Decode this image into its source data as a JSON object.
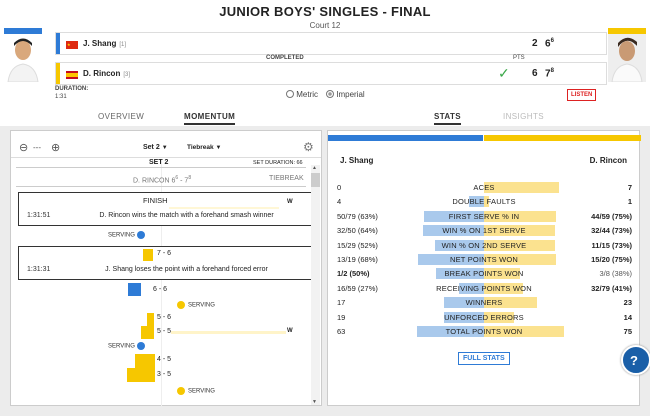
{
  "header": {
    "title": "JUNIOR BOYS' SINGLES - FINAL",
    "court": "Court 12"
  },
  "players": [
    {
      "name": "J. Shang",
      "seed": "[1]",
      "score_sets": "2",
      "score_set2": "6",
      "score_tb": "6",
      "color": "#2e7bd6",
      "flag": "china"
    },
    {
      "name": "D. Rincon",
      "seed": "[3]",
      "score_sets": "6",
      "score_set2": "7",
      "score_tb": "8",
      "color": "#f6c700",
      "flag": "spain"
    }
  ],
  "match": {
    "pts_label": "PTS",
    "status": "COMPLETED",
    "duration_label": "DURATION:",
    "duration": "1:31",
    "metric": "Metric",
    "imperial": "Imperial",
    "listen": "LISTEN"
  },
  "tabs": {
    "overview": "OVERVIEW",
    "momentum": "MOMENTUM",
    "stats": "STATS",
    "insights": "INSIGHTS"
  },
  "momentum": {
    "zoom_level": "---",
    "set_select": "Set 2",
    "tiebreak_select": "Tiebreak",
    "set_heading": "SET 2",
    "set_duration": "SET DURATION: 66",
    "set_score_name": "D. RINCON 6",
    "set_score_sup1": "6",
    "set_score_dash": " - 7",
    "set_score_sup2": "8",
    "tiebreak_label": "TIEBREAK",
    "finish_label": "FINISH",
    "w": "W",
    "msg1": {
      "time": "1:31:51",
      "text": "D. Rincon wins the match with a forehand smash winner"
    },
    "msg2": {
      "time": "1:31:31",
      "text": "J. Shang loses the point with a forehand forced error"
    },
    "serving": "SERVING",
    "scores": [
      "7 - 6",
      "6 - 6",
      "5 - 6",
      "5 - 5",
      "4 - 5",
      "3 - 5"
    ]
  },
  "stats": {
    "left_player": "J. Shang",
    "right_player": "D. Rincon",
    "rows": [
      {
        "left": "0",
        "label": "Aces",
        "right": "7",
        "lpct": 0,
        "rpct": 50,
        "bold": true
      },
      {
        "left": "4",
        "label": "Double Faults",
        "right": "1",
        "lpct": 10,
        "rpct": 3,
        "bold": true
      },
      {
        "left": "50/79 (63%)",
        "label": "First Serve % In",
        "right": "44/59 (75%)",
        "lpct": 40,
        "rpct": 48,
        "bold": true
      },
      {
        "left": "32/50 (64%)",
        "label": "Win % On 1st Serve",
        "right": "32/44 (73%)",
        "lpct": 41,
        "rpct": 47,
        "bold": true
      },
      {
        "left": "15/29 (52%)",
        "label": "Win % On 2nd Serve",
        "right": "11/15 (73%)",
        "lpct": 33,
        "rpct": 47,
        "bold": true
      },
      {
        "left": "13/19 (68%)",
        "label": "Net Points Won",
        "right": "15/20 (75%)",
        "lpct": 44,
        "rpct": 48,
        "bold": true
      },
      {
        "left": "1/2 (50%)",
        "label": "Break Points Won",
        "right": "3/8 (38%)",
        "lpct": 32,
        "rpct": 24,
        "bold": false
      },
      {
        "left": "16/59 (27%)",
        "label": "Receiving Points Won",
        "right": "32/79 (41%)",
        "lpct": 17,
        "rpct": 26,
        "bold": true
      },
      {
        "left": "17",
        "label": "Winners",
        "right": "23",
        "lpct": 27,
        "rpct": 35,
        "bold": true
      },
      {
        "left": "19",
        "label": "Unforced Errors",
        "right": "14",
        "lpct": 27,
        "rpct": 20,
        "bold": true
      },
      {
        "left": "63",
        "label": "Total Points Won",
        "right": "75",
        "lpct": 45,
        "rpct": 53,
        "bold": true
      }
    ],
    "full_stats": "FULL STATS"
  }
}
